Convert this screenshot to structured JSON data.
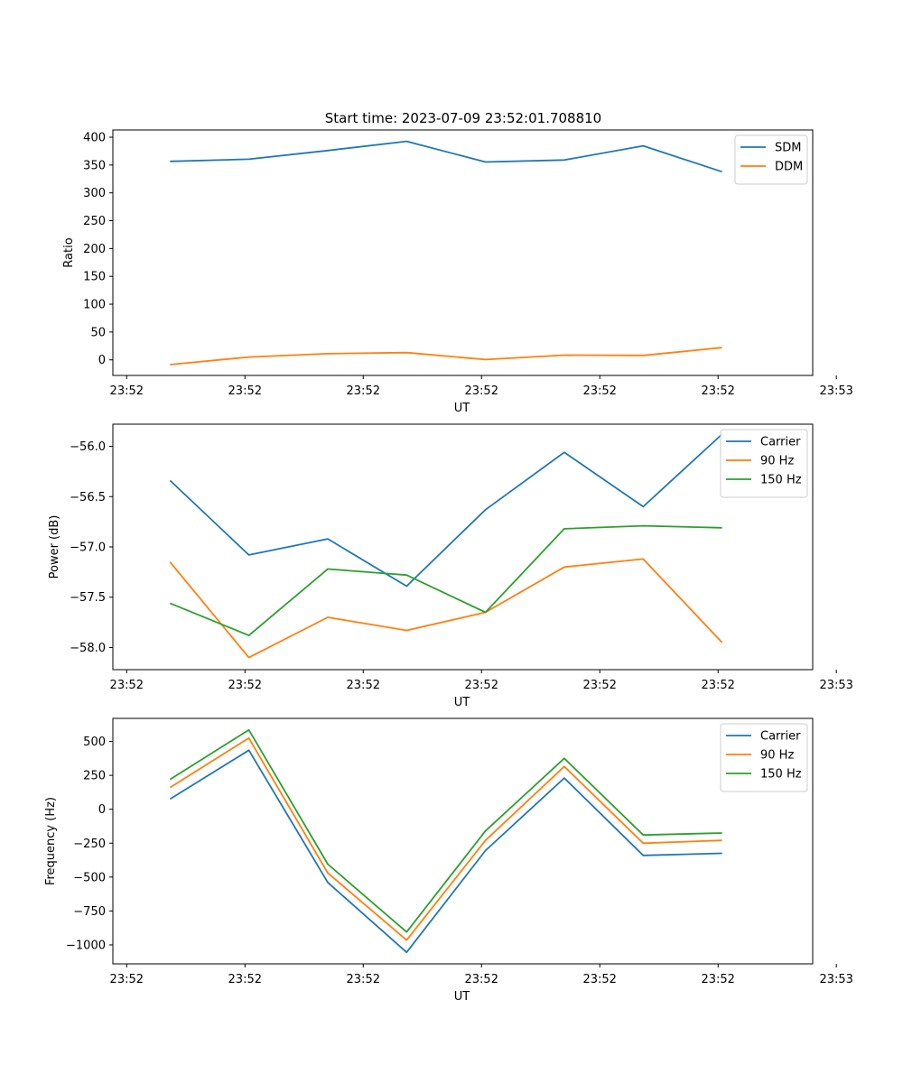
{
  "figure": {
    "title": "Start time: 2023-07-09 23:52:01.708810"
  },
  "chart_data": [
    {
      "type": "line",
      "title": "Start time: 2023-07-09 23:52:01.708810",
      "xlabel": "UT",
      "ylabel": "Ratio",
      "x": [
        1,
        2,
        3,
        4,
        5,
        6,
        7,
        8
      ],
      "xlim": [
        0.275,
        9.15
      ],
      "x_ticks": [
        0.45,
        1.95,
        3.45,
        4.95,
        6.45,
        7.95,
        9.45
      ],
      "x_tick_labels": [
        "23:52",
        "23:52",
        "23:52",
        "23:52",
        "23:52",
        "23:52",
        "23:53"
      ],
      "ylim": [
        -28,
        413
      ],
      "y_ticks": [
        0,
        50,
        100,
        150,
        200,
        250,
        300,
        350,
        400
      ],
      "y_tick_labels": [
        "0",
        "50",
        "100",
        "150",
        "200",
        "250",
        "300",
        "350",
        "400"
      ],
      "legend_position": "top-right",
      "series": [
        {
          "name": "SDM",
          "color": "#1f77b4",
          "values": [
            356.5,
            360.5,
            376.0,
            392.5,
            355.5,
            359.0,
            384.5,
            338.0
          ]
        },
        {
          "name": "DDM",
          "color": "#ff7f0e",
          "values": [
            -8.5,
            5.0,
            11.0,
            13.0,
            0.5,
            8.5,
            8.0,
            22.0
          ]
        }
      ]
    },
    {
      "type": "line",
      "title": "",
      "xlabel": "UT",
      "ylabel": "Power (dB)",
      "x": [
        1,
        2,
        3,
        4,
        5,
        6,
        7,
        8
      ],
      "xlim": [
        0.275,
        9.15
      ],
      "x_ticks": [
        0.45,
        1.95,
        3.45,
        4.95,
        6.45,
        7.95,
        9.45
      ],
      "x_tick_labels": [
        "23:52",
        "23:52",
        "23:52",
        "23:52",
        "23:52",
        "23:52",
        "23:53"
      ],
      "ylim": [
        -58.22,
        -55.78
      ],
      "y_ticks": [
        -58.0,
        -57.5,
        -57.0,
        -56.5,
        -56.0
      ],
      "y_tick_labels": [
        "−58.0",
        "−57.5",
        "−57.0",
        "−56.5",
        "−56.0"
      ],
      "legend_position": "top-right",
      "series": [
        {
          "name": "Carrier",
          "color": "#1f77b4",
          "values": [
            -56.34,
            -57.08,
            -56.92,
            -57.39,
            -56.63,
            -56.06,
            -56.6,
            -55.88
          ]
        },
        {
          "name": "90 Hz",
          "color": "#ff7f0e",
          "values": [
            -57.15,
            -58.1,
            -57.7,
            -57.83,
            -57.65,
            -57.2,
            -57.12,
            -57.95
          ]
        },
        {
          "name": "150 Hz",
          "color": "#2ca02c",
          "values": [
            -57.56,
            -57.88,
            -57.22,
            -57.28,
            -57.65,
            -56.82,
            -56.79,
            -56.81
          ]
        }
      ]
    },
    {
      "type": "line",
      "title": "",
      "xlabel": "UT",
      "ylabel": "Frequency (Hz)",
      "x": [
        1,
        2,
        3,
        4,
        5,
        6,
        7,
        8
      ],
      "xlim": [
        0.275,
        9.15
      ],
      "x_ticks": [
        0.45,
        1.95,
        3.45,
        4.95,
        6.45,
        7.95,
        9.45
      ],
      "x_tick_labels": [
        "23:52",
        "23:52",
        "23:52",
        "23:52",
        "23:52",
        "23:52",
        "23:53"
      ],
      "ylim": [
        -1140,
        670
      ],
      "y_ticks": [
        -1000,
        -750,
        -500,
        -250,
        0,
        250,
        500
      ],
      "y_tick_labels": [
        "−1000",
        "−750",
        "−500",
        "−250",
        "0",
        "250",
        "500"
      ],
      "legend_position": "top-right",
      "series": [
        {
          "name": "Carrier",
          "color": "#1f77b4",
          "values": [
            75,
            435,
            -540,
            -1055,
            -305,
            230,
            -340,
            -325
          ]
        },
        {
          "name": "90 Hz",
          "color": "#ff7f0e",
          "values": [
            160,
            525,
            -470,
            -965,
            -230,
            315,
            -250,
            -230
          ]
        },
        {
          "name": "150 Hz",
          "color": "#2ca02c",
          "values": [
            220,
            585,
            -405,
            -905,
            -160,
            375,
            -190,
            -175
          ]
        }
      ]
    }
  ]
}
